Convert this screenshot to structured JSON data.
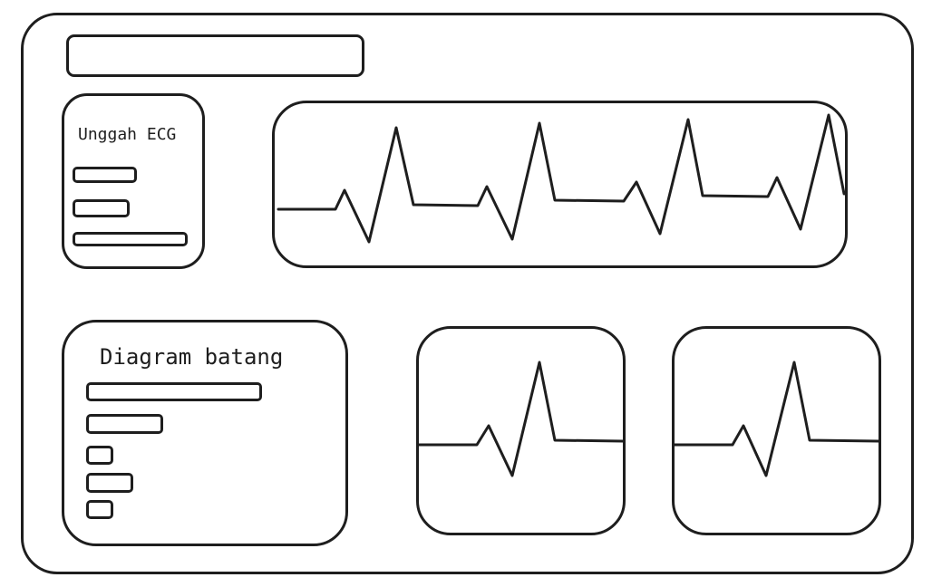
{
  "upload_panel": {
    "title": "Unggah ECG",
    "option_count": 3
  },
  "bar_panel": {
    "title": "Diagram batang",
    "bar_values": [
      1.0,
      0.44,
      0.16,
      0.28,
      0.16
    ]
  },
  "colors": {
    "stroke": "#1e1e1e",
    "background": "#ffffff"
  }
}
